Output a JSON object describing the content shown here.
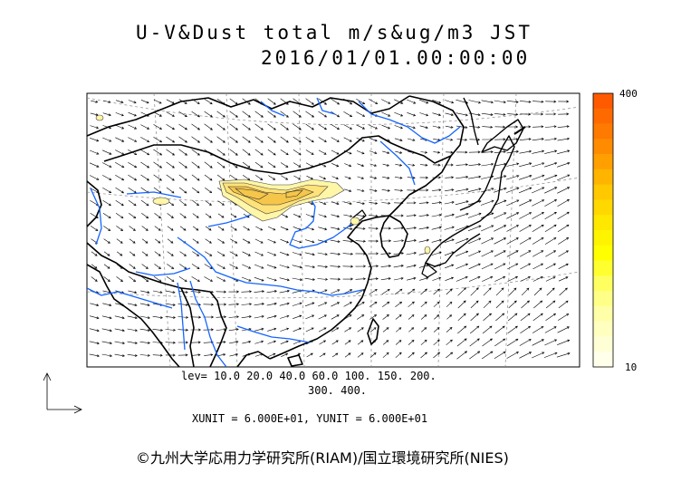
{
  "title": {
    "line1": "U-V&Dust total m/s&ug/m3 JST",
    "line2": "2016/01/01.00:00:00"
  },
  "contour_levels": {
    "line1": "lev= 10.0 20.0 40.0 60.0 100. 150. 200.",
    "line2": "300. 400."
  },
  "units": "XUNIT = 6.000E+01, YUNIT = 6.000E+01",
  "copyright": "©九州大学応用力学研究所(RIAM)/国立環境研究所(NIES)",
  "colorbar": {
    "max_label": "400",
    "min_label": "10",
    "colors": [
      "#ff5a00",
      "#ff6a00",
      "#ff7a00",
      "#ff8c00",
      "#ffa000",
      "#ffb400",
      "#ffc800",
      "#ffd800",
      "#ffe800",
      "#fff400",
      "#ffff00",
      "#ffff30",
      "#ffff60",
      "#ffff88",
      "#ffffa8",
      "#ffffc0",
      "#ffffd6",
      "#ffffea"
    ]
  },
  "colors": {
    "coast": "#000000",
    "river": "#1464ff",
    "dust_light": "#fff6a8",
    "dust_mid": "#ffe27a",
    "dust_dark": "#f5c64a",
    "grid": "#888888"
  }
}
